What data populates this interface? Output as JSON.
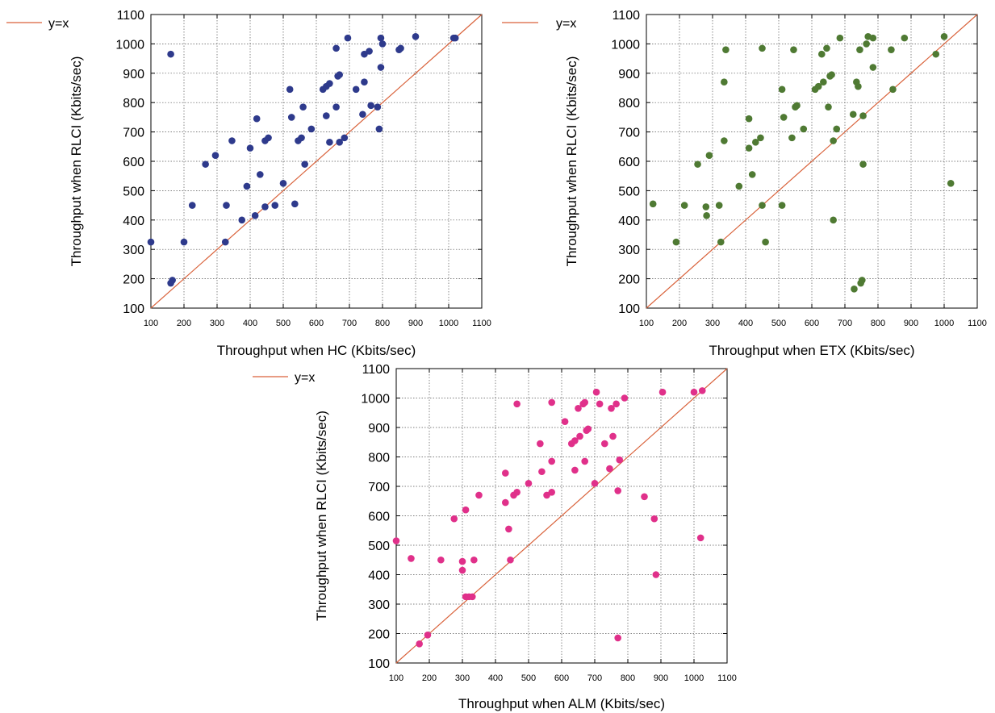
{
  "chart_data": [
    {
      "type": "scatter",
      "xlabel": "Throughput when HC (Kbits/sec)",
      "ylabel": "Throughput when RLCI (Kbits/sec)",
      "xlim": [
        100,
        1100
      ],
      "ylim": [
        100,
        1100
      ],
      "xticks": [
        "100",
        "200",
        "300",
        "400",
        "500",
        "600",
        "700",
        "800",
        "900",
        "1000",
        "1100"
      ],
      "yticks": [
        "100",
        "200",
        "300",
        "400",
        "500",
        "600",
        "700",
        "800",
        "900",
        "1000",
        "1100"
      ],
      "grid": true,
      "legend": "top-left outside",
      "color": "#2e3a8c",
      "reference_line": {
        "name": "y=x",
        "color": "#d9623b"
      },
      "points": [
        [
          100,
          325
        ],
        [
          160,
          965
        ],
        [
          160,
          185
        ],
        [
          165,
          195
        ],
        [
          200,
          325
        ],
        [
          225,
          450
        ],
        [
          265,
          590
        ],
        [
          295,
          620
        ],
        [
          325,
          325
        ],
        [
          328,
          450
        ],
        [
          345,
          670
        ],
        [
          375,
          400
        ],
        [
          390,
          515
        ],
        [
          400,
          645
        ],
        [
          415,
          415
        ],
        [
          420,
          745
        ],
        [
          430,
          555
        ],
        [
          445,
          670
        ],
        [
          445,
          445
        ],
        [
          455,
          680
        ],
        [
          475,
          450
        ],
        [
          500,
          525
        ],
        [
          520,
          845
        ],
        [
          525,
          750
        ],
        [
          535,
          455
        ],
        [
          545,
          670
        ],
        [
          555,
          680
        ],
        [
          560,
          785
        ],
        [
          565,
          590
        ],
        [
          585,
          710
        ],
        [
          620,
          845
        ],
        [
          630,
          855
        ],
        [
          630,
          755
        ],
        [
          640,
          865
        ],
        [
          640,
          665
        ],
        [
          660,
          985
        ],
        [
          660,
          785
        ],
        [
          665,
          890
        ],
        [
          670,
          665
        ],
        [
          670,
          895
        ],
        [
          685,
          680
        ],
        [
          695,
          1020
        ],
        [
          720,
          845
        ],
        [
          740,
          760
        ],
        [
          745,
          965
        ],
        [
          745,
          870
        ],
        [
          760,
          975
        ],
        [
          765,
          790
        ],
        [
          785,
          785
        ],
        [
          790,
          710
        ],
        [
          795,
          920
        ],
        [
          795,
          1020
        ],
        [
          800,
          1000
        ],
        [
          850,
          980
        ],
        [
          855,
          985
        ],
        [
          900,
          1025
        ],
        [
          1015,
          1020
        ],
        [
          1020,
          1020
        ]
      ]
    },
    {
      "type": "scatter",
      "xlabel": "Throughput when ETX (Kbits/sec)",
      "ylabel": "Throughput when RLCI (Kbits/sec)",
      "xlim": [
        100,
        1100
      ],
      "ylim": [
        100,
        1100
      ],
      "xticks": [
        "100",
        "200",
        "300",
        "400",
        "500",
        "600",
        "700",
        "800",
        "900",
        "1000",
        "1100"
      ],
      "yticks": [
        "100",
        "200",
        "300",
        "400",
        "500",
        "600",
        "700",
        "800",
        "900",
        "1000",
        "1100"
      ],
      "grid": true,
      "legend": "top-left outside",
      "color": "#4f7a33",
      "reference_line": {
        "name": "y=x",
        "color": "#d9623b"
      },
      "points": [
        [
          120,
          455
        ],
        [
          190,
          325
        ],
        [
          215,
          450
        ],
        [
          255,
          590
        ],
        [
          280,
          445
        ],
        [
          282,
          415
        ],
        [
          290,
          620
        ],
        [
          320,
          450
        ],
        [
          325,
          325
        ],
        [
          335,
          870
        ],
        [
          335,
          670
        ],
        [
          340,
          980
        ],
        [
          380,
          515
        ],
        [
          410,
          645
        ],
        [
          410,
          745
        ],
        [
          420,
          555
        ],
        [
          430,
          665
        ],
        [
          445,
          680
        ],
        [
          450,
          985
        ],
        [
          450,
          450
        ],
        [
          460,
          325
        ],
        [
          510,
          845
        ],
        [
          510,
          450
        ],
        [
          515,
          750
        ],
        [
          540,
          680
        ],
        [
          545,
          980
        ],
        [
          550,
          785
        ],
        [
          555,
          790
        ],
        [
          575,
          710
        ],
        [
          610,
          845
        ],
        [
          620,
          855
        ],
        [
          630,
          965
        ],
        [
          635,
          870
        ],
        [
          645,
          985
        ],
        [
          650,
          785
        ],
        [
          655,
          890
        ],
        [
          660,
          895
        ],
        [
          665,
          670
        ],
        [
          665,
          400
        ],
        [
          675,
          710
        ],
        [
          685,
          1020
        ],
        [
          725,
          760
        ],
        [
          728,
          165
        ],
        [
          735,
          870
        ],
        [
          740,
          855
        ],
        [
          745,
          980
        ],
        [
          748,
          185
        ],
        [
          752,
          195
        ],
        [
          755,
          755
        ],
        [
          755,
          590
        ],
        [
          765,
          1000
        ],
        [
          770,
          1025
        ],
        [
          785,
          920
        ],
        [
          785,
          1020
        ],
        [
          840,
          980
        ],
        [
          845,
          845
        ],
        [
          880,
          1020
        ],
        [
          975,
          965
        ],
        [
          1000,
          1025
        ],
        [
          1020,
          525
        ]
      ]
    },
    {
      "type": "scatter",
      "xlabel": "Throughput when ALM (Kbits/sec)",
      "ylabel": "Throughput when RLCI (Kbits/sec)",
      "xlim": [
        100,
        1100
      ],
      "ylim": [
        100,
        1100
      ],
      "xticks": [
        "100",
        "200",
        "300",
        "400",
        "500",
        "600",
        "700",
        "800",
        "900",
        "1000",
        "1100"
      ],
      "yticks": [
        "100",
        "200",
        "300",
        "400",
        "500",
        "600",
        "700",
        "800",
        "900",
        "1000",
        "1100"
      ],
      "grid": true,
      "legend": "top-left outside",
      "color": "#e0308a",
      "reference_line": {
        "name": "y=x",
        "color": "#d9623b"
      },
      "points": [
        [
          100,
          515
        ],
        [
          145,
          455
        ],
        [
          170,
          165
        ],
        [
          195,
          195
        ],
        [
          235,
          450
        ],
        [
          275,
          590
        ],
        [
          300,
          445
        ],
        [
          300,
          415
        ],
        [
          310,
          620
        ],
        [
          310,
          325
        ],
        [
          320,
          325
        ],
        [
          330,
          325
        ],
        [
          335,
          450
        ],
        [
          350,
          670
        ],
        [
          430,
          745
        ],
        [
          430,
          645
        ],
        [
          440,
          555
        ],
        [
          445,
          450
        ],
        [
          455,
          670
        ],
        [
          465,
          680
        ],
        [
          465,
          980
        ],
        [
          500,
          710
        ],
        [
          535,
          845
        ],
        [
          540,
          750
        ],
        [
          555,
          670
        ],
        [
          570,
          680
        ],
        [
          570,
          785
        ],
        [
          570,
          985
        ],
        [
          610,
          920
        ],
        [
          630,
          845
        ],
        [
          640,
          855
        ],
        [
          640,
          755
        ],
        [
          650,
          965
        ],
        [
          655,
          870
        ],
        [
          665,
          980
        ],
        [
          670,
          785
        ],
        [
          670,
          985
        ],
        [
          675,
          890
        ],
        [
          680,
          895
        ],
        [
          700,
          710
        ],
        [
          705,
          1020
        ],
        [
          715,
          980
        ],
        [
          730,
          845
        ],
        [
          745,
          760
        ],
        [
          750,
          965
        ],
        [
          755,
          870
        ],
        [
          765,
          980
        ],
        [
          770,
          685
        ],
        [
          770,
          185
        ],
        [
          775,
          790
        ],
        [
          790,
          1000
        ],
        [
          850,
          665
        ],
        [
          880,
          590
        ],
        [
          885,
          400
        ],
        [
          905,
          1020
        ],
        [
          1000,
          1020
        ],
        [
          1020,
          525
        ],
        [
          1025,
          1025
        ]
      ]
    }
  ]
}
